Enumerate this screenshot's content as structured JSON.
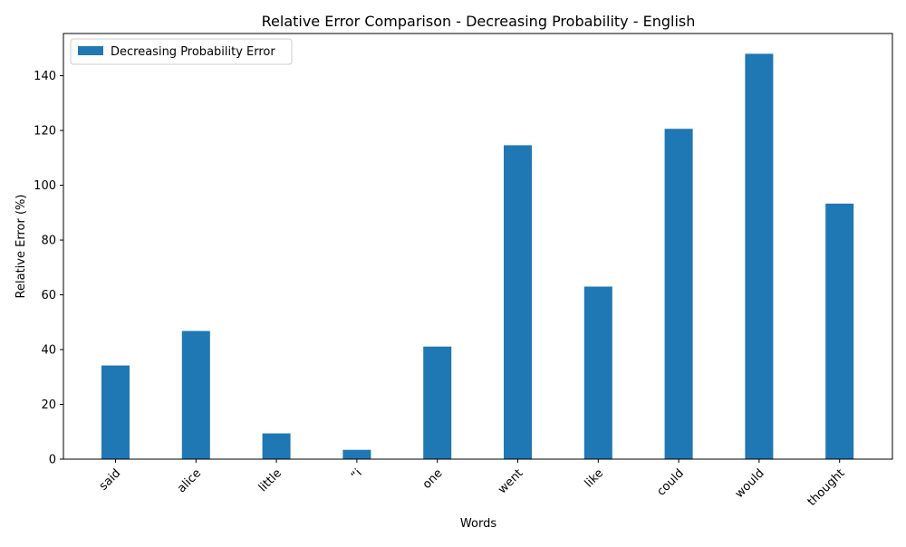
{
  "chart_data": {
    "type": "bar",
    "title": "Relative Error Comparison - Decreasing Probability - English",
    "xlabel": "Words",
    "ylabel": "Relative Error (%)",
    "categories": [
      "said",
      "alice",
      "little",
      "“i",
      "one",
      "went",
      "like",
      "could",
      "would",
      "thought"
    ],
    "series": [
      {
        "name": "Decreasing Probability Error",
        "values": [
          34.2,
          46.8,
          9.4,
          3.4,
          41.1,
          114.6,
          63.0,
          120.6,
          148.0,
          93.3
        ],
        "color": "#1f77b4"
      }
    ],
    "ylim": [
      0,
      155.4
    ],
    "yticks": [
      0,
      20,
      40,
      60,
      80,
      100,
      120,
      140
    ],
    "grid": false,
    "legend_position": "top-left"
  }
}
